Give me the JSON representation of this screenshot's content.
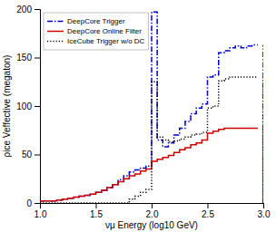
{
  "chart_data": {
    "type": "step",
    "x_label": "νμ Energy (log10 GeV)",
    "y_label": "ρice Veffective (megaton)",
    "xlim": [
      1.0,
      3.0
    ],
    "ylim": [
      0,
      200
    ],
    "xticks": [
      {
        "value": 1.0,
        "label": "1.0"
      },
      1.5,
      {
        "value": 2.0,
        "label": "2.0"
      },
      2.5,
      {
        "value": 3.0,
        "label": "3.0"
      }
    ],
    "yticks": [
      0,
      50,
      100,
      150,
      200
    ],
    "grid": false,
    "legend": "upper left",
    "x": [
      1.0,
      1.05,
      1.1,
      1.15,
      1.2,
      1.25,
      1.3,
      1.35,
      1.4,
      1.45,
      1.5,
      1.55,
      1.6,
      1.65,
      1.7,
      1.75,
      1.8,
      1.85,
      1.9,
      1.95,
      2.0,
      2.05,
      2.1,
      2.15,
      2.2,
      2.25,
      2.3,
      2.35,
      2.4,
      2.45,
      2.5,
      2.55,
      2.6,
      2.65,
      2.7,
      2.75,
      2.8,
      2.85,
      2.9,
      2.95
    ],
    "series": [
      {
        "name": "DeepCore Trigger",
        "color": "#0000cc",
        "line_style": "dashdot",
        "values": [
          2,
          2,
          2,
          3,
          4,
          5,
          6,
          7,
          8,
          9,
          11,
          13,
          16,
          19,
          24,
          28,
          32,
          34,
          36,
          38,
          197,
          65,
          58,
          62,
          70,
          77,
          84,
          92,
          98,
          102,
          130,
          132,
          155,
          157,
          160,
          162,
          160,
          162,
          163,
          163
        ]
      },
      {
        "name": "DeepCore Online Filter",
        "color": "#cc0000",
        "line_style": "solid",
        "values": [
          2,
          2,
          2,
          3,
          4,
          5,
          6,
          7,
          8,
          9,
          11,
          13,
          16,
          19,
          22,
          25,
          28,
          30,
          33,
          35,
          43,
          45,
          47,
          49,
          52,
          55,
          57,
          60,
          62,
          65,
          72,
          74,
          76,
          77,
          77,
          77,
          77,
          77,
          77,
          77
        ]
      },
      {
        "name": "IceCube Trigger w/o DC",
        "color": "#000000",
        "line_style": "dotted",
        "values": [
          0,
          0,
          0,
          0,
          0,
          0,
          0,
          0,
          0,
          0,
          0,
          0,
          0,
          0,
          0,
          0,
          4,
          7,
          11,
          14,
          125,
          68,
          65,
          63,
          64,
          66,
          68,
          70,
          71,
          73,
          98,
          100,
          126,
          128,
          130,
          130,
          130,
          130,
          130,
          130
        ]
      }
    ]
  }
}
